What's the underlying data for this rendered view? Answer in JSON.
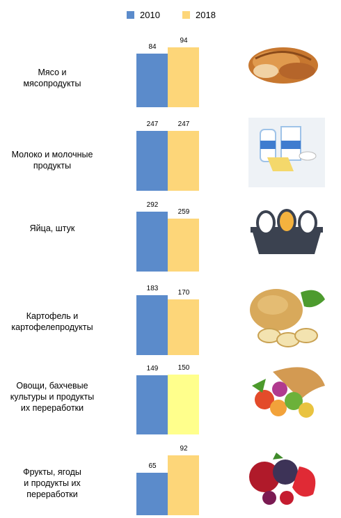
{
  "legend": {
    "items": [
      {
        "label": "2010",
        "color": "#5b8bcb"
      },
      {
        "label": "2018",
        "color": "#fdd679"
      }
    ]
  },
  "chart_data": {
    "type": "bar",
    "orientation": "vertical",
    "layout": "small-multiples",
    "categories": [
      "Мясо и\nмясопродукты",
      "Молоко  и молочные\nпродукты",
      "Яйца, штук",
      "Картофель  и\nкартофелепродукты",
      "Овощи, бахчевые\nкультуры и продукты\nих переработки",
      "Фрукты, ягоды\nи продукты их\nпереработки"
    ],
    "series": [
      {
        "name": "2010",
        "values": [
          84,
          247,
          292,
          183,
          149,
          65
        ]
      },
      {
        "name": "2018",
        "values": [
          94,
          247,
          259,
          170,
          150,
          92
        ]
      }
    ],
    "value_labels": {
      "2010": [
        "84",
        "247",
        "292",
        "183",
        "149",
        "65"
      ],
      "2018": [
        "94",
        "247",
        "259",
        "170",
        "150",
        "92"
      ]
    },
    "special_colors": {
      "Овощи, бахчевые\nкультуры и продукты\nих переработки": "#ffff8c"
    },
    "per_panel_ylim_basis": "max of panel",
    "grid": false,
    "legend_position": "top-center",
    "icons": [
      "meat-icon",
      "milk-icon",
      "eggs-icon",
      "potato-icon",
      "vegetables-icon",
      "berries-icon"
    ]
  }
}
